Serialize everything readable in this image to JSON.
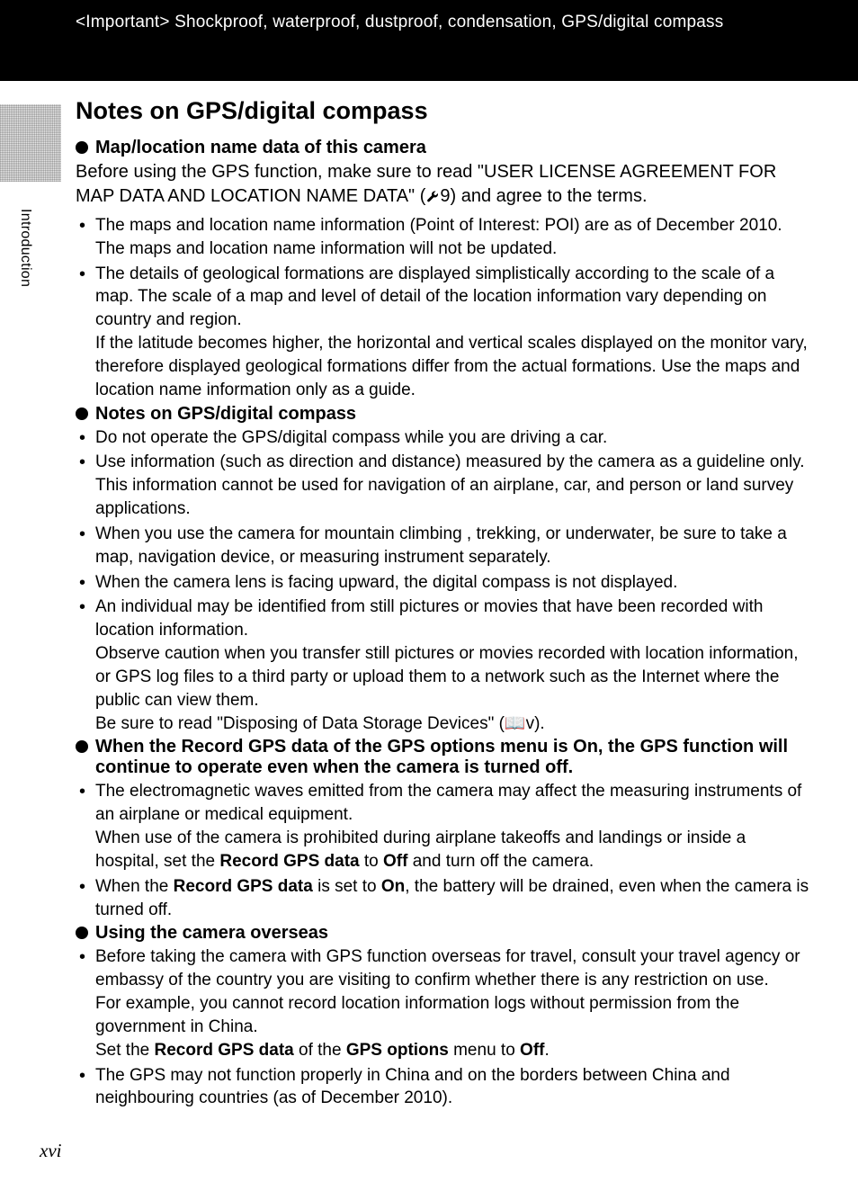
{
  "header": {
    "text": "<Important> Shockproof, waterproof, dustproof, condensation, GPS/digital compass"
  },
  "sideLabel": "Introduction",
  "mainTitle": "Notes on GPS/digital compass",
  "sections": [
    {
      "heading": "Map/location name data of this camera",
      "intro_parts": {
        "pre": "Before using the GPS function, make sure to read \"USER LICENSE AGREEMENT FOR MAP DATA AND LOCATION NAME DATA\" (",
        "ref": "9",
        "post": ") and agree to the terms."
      },
      "bullets": [
        "The maps and location name information (Point of Interest: POI) are as of December 2010. The maps and location name information will not be updated.",
        "The details of geological formations are displayed simplistically according to the scale of a map. The scale of a map and level of detail of the location information vary depending on country and region.\nIf the latitude becomes higher, the horizontal and vertical scales displayed on the monitor vary, therefore displayed geological formations differ from the actual formations. Use the maps and location name information only as a guide."
      ]
    },
    {
      "heading": "Notes on GPS/digital compass",
      "bullets": [
        "Do not operate the GPS/digital compass while you are driving a car.",
        "Use information (such as direction and distance) measured by the camera as a guideline only. This information cannot be used for navigation of an airplane, car, and person or land survey applications.",
        "When you use the camera for mountain climbing , trekking, or underwater, be sure to take a map, navigation device, or measuring instrument separately.",
        "When the camera lens is facing upward, the digital compass is not displayed.",
        "An individual may be identified from still pictures or movies that have been recorded with location information.\nObserve caution when you transfer still pictures or movies recorded with location information, or GPS log files to a third party or upload them to a network such as the Internet where the public can view them.\nBe sure to read \"Disposing of Data Storage Devices\" (📖v)."
      ]
    },
    {
      "heading": "When the Record GPS data of the GPS options menu is On, the GPS function will continue to operate even when the camera is turned off.",
      "bullets_rich": [
        [
          {
            "t": "The electromagnetic waves emitted from the camera may affect the measuring instruments of an airplane or medical equipment.\nWhen use of the camera is prohibited during airplane takeoffs and landings or inside a hospital, set the "
          },
          {
            "b": "Record GPS data"
          },
          {
            "t": " to "
          },
          {
            "b": "Off"
          },
          {
            "t": " and turn off the camera."
          }
        ],
        [
          {
            "t": "When the "
          },
          {
            "b": "Record GPS data"
          },
          {
            "t": " is set to "
          },
          {
            "b": "On"
          },
          {
            "t": ", the battery will be drained, even when the camera is turned off."
          }
        ]
      ]
    },
    {
      "heading": "Using the camera overseas",
      "bullets_rich": [
        [
          {
            "t": "Before taking the camera with GPS function overseas for travel, consult your travel agency or embassy of the country you are visiting to confirm whether there is any restriction on use.\nFor example, you cannot record location information logs without permission from the government in China.\nSet the "
          },
          {
            "b": "Record GPS data"
          },
          {
            "t": " of the "
          },
          {
            "b": "GPS options"
          },
          {
            "t": " menu to "
          },
          {
            "b": "Off"
          },
          {
            "t": "."
          }
        ],
        [
          {
            "t": "The GPS may not function properly in China and on the borders between China and neighbouring countries (as of December 2010)."
          }
        ]
      ]
    }
  ],
  "pageNumber": "xvi",
  "icons": {
    "wrench_ref": "✿"
  },
  "colors": {
    "headerBg": "#000000",
    "headerText": "#ffffff",
    "bodyText": "#000000"
  },
  "typography": {
    "title_fontsize": 27,
    "heading_fontsize": 20,
    "body_fontsize": 19
  }
}
